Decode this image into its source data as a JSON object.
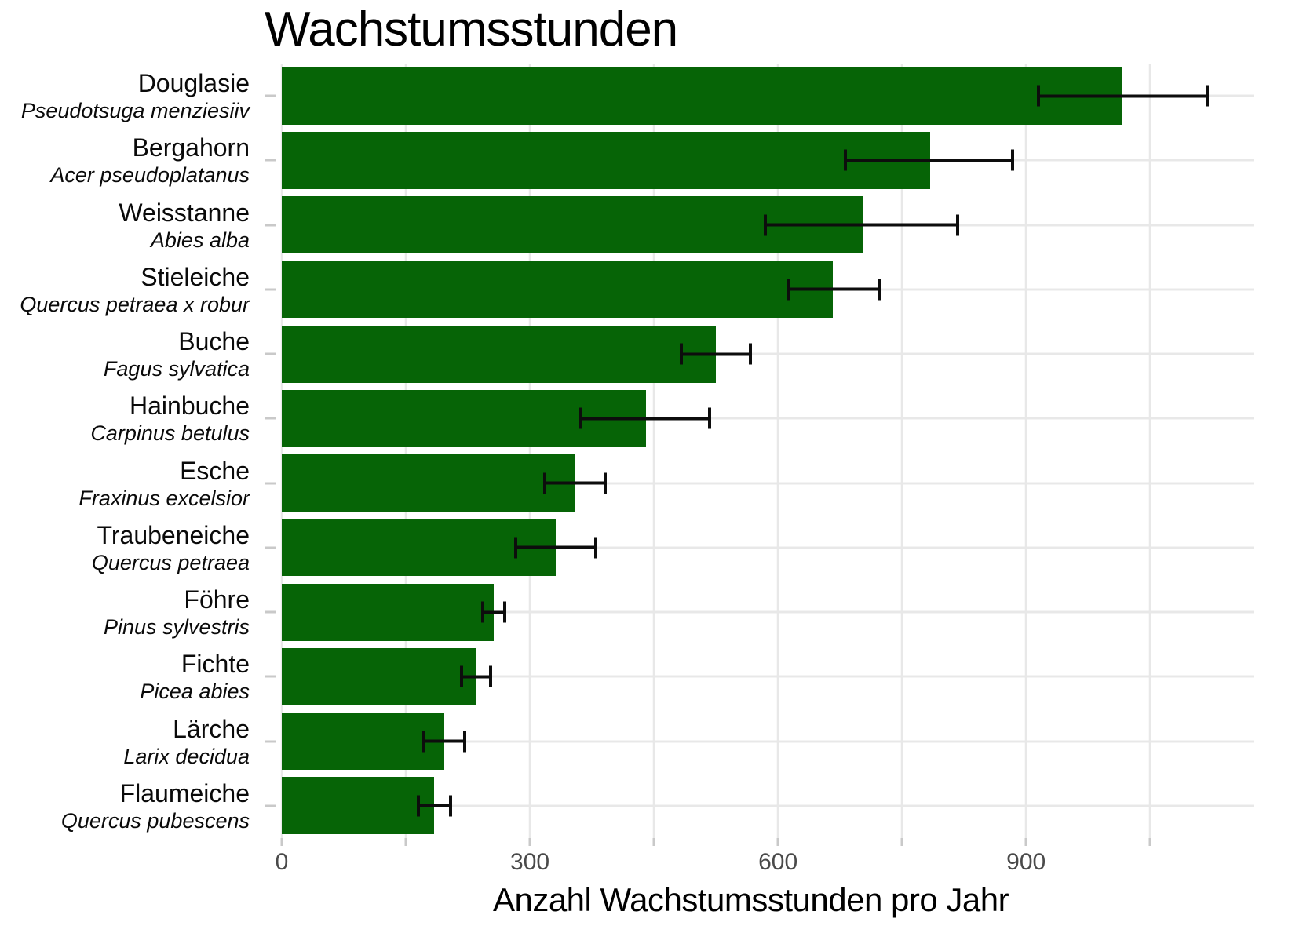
{
  "chart_data": {
    "type": "bar",
    "orientation": "horizontal",
    "title": "Wachstumsstunden",
    "xlabel": "Anzahl Wachstumsstunden pro Jahr",
    "ylabel": "",
    "x_tick_labels": [
      "0",
      "300",
      "600",
      "900"
    ],
    "x_ticks": [
      0,
      300,
      600,
      900
    ],
    "x_minor_step": 150,
    "xlim": [
      0,
      1176
    ],
    "grid": "on",
    "legend": "none",
    "bar_color": "#066406",
    "error_bar_color": "#0d0d0d",
    "gridline_color": "#e8e8e8",
    "tick_color": "#c9c9c9",
    "tick_label_color": "#4a4a4a",
    "categories": [
      {
        "name": "Douglasie",
        "latin": "Pseudotsuga menziesiiv",
        "value": 1016,
        "err_low": 913,
        "err_high": 1121
      },
      {
        "name": "Bergahorn",
        "latin": "Acer pseudoplatanus",
        "value": 784,
        "err_low": 680,
        "err_high": 886
      },
      {
        "name": "Weisstanne",
        "latin": "Abies alba",
        "value": 702,
        "err_low": 583,
        "err_high": 819
      },
      {
        "name": "Stieleiche",
        "latin": "Quercus petraea x robur",
        "value": 666,
        "err_low": 611,
        "err_high": 724
      },
      {
        "name": "Buche",
        "latin": "Fagus sylvatica",
        "value": 525,
        "err_low": 481,
        "err_high": 569
      },
      {
        "name": "Hainbuche",
        "latin": "Carpinus betulus",
        "value": 440,
        "err_low": 360,
        "err_high": 519
      },
      {
        "name": "Esche",
        "latin": "Fraxinus excelsior",
        "value": 354,
        "err_low": 316,
        "err_high": 393
      },
      {
        "name": "Traubeneiche",
        "latin": "Quercus petraea",
        "value": 331,
        "err_low": 281,
        "err_high": 382
      },
      {
        "name": "Föhre",
        "latin": "Pinus sylvestris",
        "value": 256,
        "err_low": 241,
        "err_high": 271
      },
      {
        "name": "Fichte",
        "latin": "Picea abies",
        "value": 234,
        "err_low": 215,
        "err_high": 254
      },
      {
        "name": "Lärche",
        "latin": "Larix decidua",
        "value": 196,
        "err_low": 170,
        "err_high": 223
      },
      {
        "name": "Flaumeiche",
        "latin": "Quercus pubescens",
        "value": 184,
        "err_low": 163,
        "err_high": 206
      }
    ]
  }
}
